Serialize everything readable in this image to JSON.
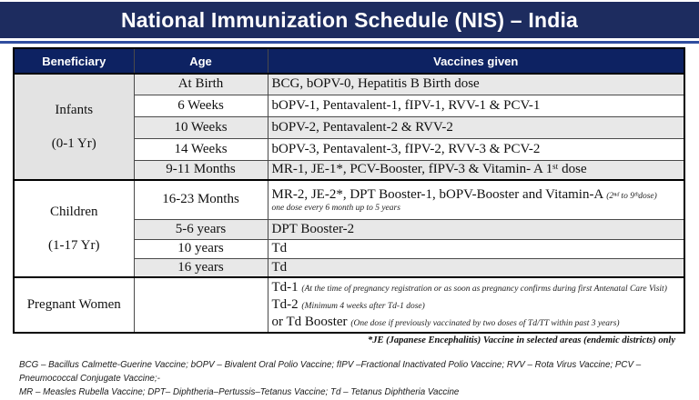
{
  "title": "National Immunization Schedule (NIS) – India",
  "table": {
    "headers": {
      "beneficiary": "Beneficiary",
      "age": "Age",
      "vaccines": "Vaccines given"
    },
    "sections": [
      {
        "beneficiary_line1": "Infants",
        "beneficiary_line2": "(0-1 Yr)",
        "rows": [
          {
            "age": "At Birth",
            "vaccines": "BCG, bOPV-0, Hepatitis B Birth dose"
          },
          {
            "age": "6 Weeks",
            "vaccines": "bOPV-1, Pentavalent-1, fIPV-1, RVV-1 & PCV-1"
          },
          {
            "age": "10 Weeks",
            "vaccines": "bOPV-2, Pentavalent-2 & RVV-2"
          },
          {
            "age": "14 Weeks",
            "vaccines": "bOPV-3, Pentavalent-3, fIPV-2, RVV-3 & PCV-2"
          },
          {
            "age": "9-11 Months",
            "vaccines": "MR-1, JE-1*, PCV-Booster, fIPV-3 & Vitamin- A 1ˢᵗ dose"
          }
        ]
      },
      {
        "beneficiary_line1": "Children",
        "beneficiary_line2": "(1-17 Yr)",
        "rows": [
          {
            "age": "16-23 Months",
            "vaccines_main": "MR-2, JE-2*, DPT Booster-1, bOPV-Booster and  Vitamin-A",
            "vaccines_note_inline": "(2ⁿᵈ to 9ᵗʰdose)",
            "vaccines_note_line2": "one dose every 6 month up to 5 years"
          },
          {
            "age": "5-6 years",
            "vaccines": "DPT Booster-2"
          },
          {
            "age": "10 years",
            "vaccines": "Td"
          },
          {
            "age": "16 years",
            "vaccines": "Td"
          }
        ]
      },
      {
        "beneficiary_line1": "Pregnant Women",
        "beneficiary_line2": "",
        "age": "",
        "rows": [
          {
            "main": "Td-1",
            "note": "(At the time of pregnancy registration or as soon as pregnancy confirms during first Antenatal Care Visit)"
          },
          {
            "main": "Td-2",
            "note": "(Minimum 4 weeks after Td-1 dose)"
          },
          {
            "main": "or Td Booster",
            "note": "(One dose if previously vaccinated by two doses of Td/TT within past 3 years)"
          }
        ]
      }
    ]
  },
  "footnotes": {
    "je_note": "*JE (Japanese Encephalitis) Vaccine in selected areas (endemic districts) only",
    "abbrev_line1": "BCG – Bacillus Calmette-Guerine Vaccine; bOPV – Bivalent Oral Polio Vaccine; fIPV –Fractional Inactivated Polio Vaccine; RVV – Rota Virus Vaccine; PCV – Pneumococcal Conjugate Vaccine;-",
    "abbrev_line2": "MR – Measles  Rubella Vaccine; DPT– Diphtheria–Pertussis–Tetanus Vaccine; Td – Tetanus Diphtheria Vaccine"
  },
  "colors": {
    "title_navy": "#1d2c5f",
    "header_navy": "#0d2262",
    "accent_blue": "#2f4d9e",
    "stripe_gray": "#e8e8e8"
  }
}
